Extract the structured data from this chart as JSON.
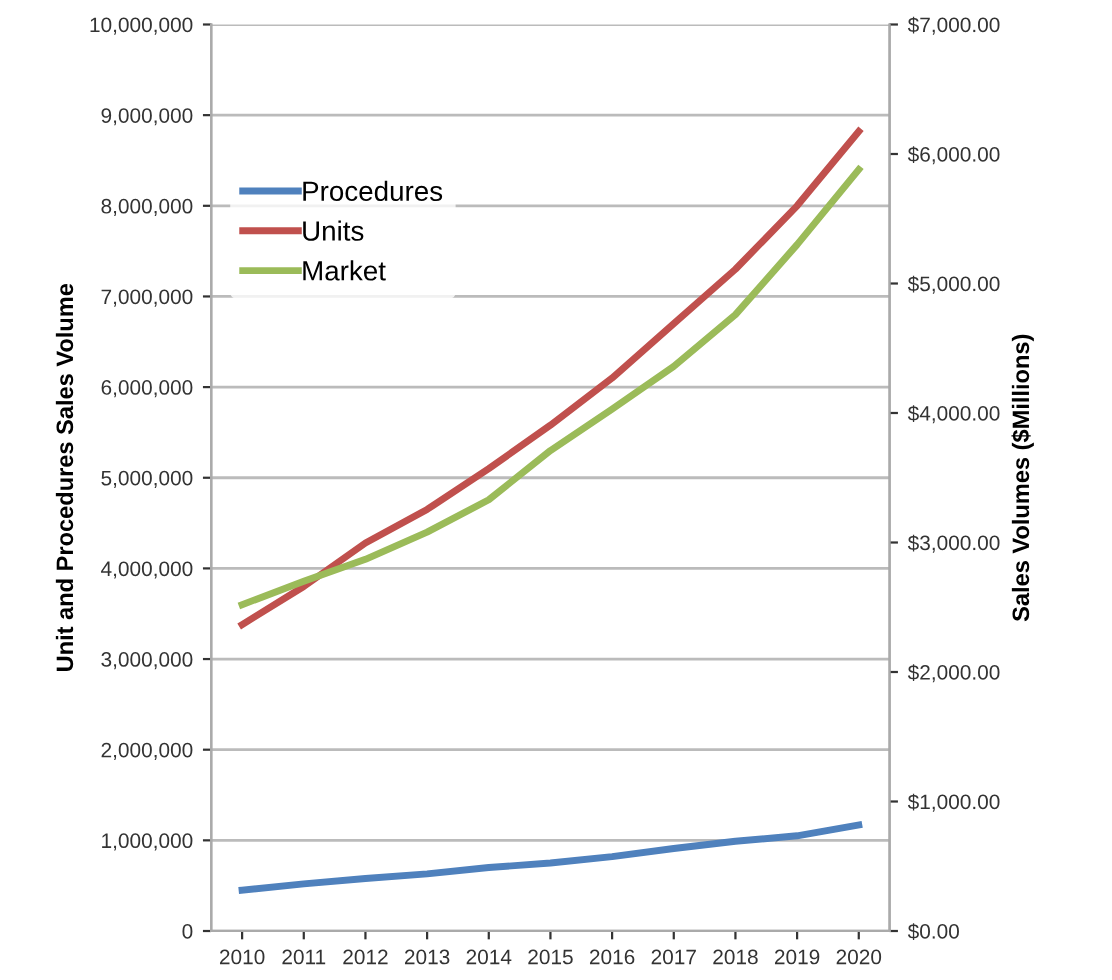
{
  "chart_data": {
    "type": "line",
    "ylabel": "Unit and Procedures Sales Volume",
    "y2label": "Sales Volumes ($Millions)",
    "categories": [
      "2010",
      "2011",
      "2012",
      "2013",
      "2014",
      "2015",
      "2016",
      "2017",
      "2018",
      "2019",
      "2020"
    ],
    "series": [
      {
        "name": "Procedures",
        "color": "#4f81bd",
        "values": [
          450000,
          520000,
          580000,
          630000,
          700000,
          750000,
          820000,
          910000,
          990000,
          1050000,
          1170000
        ]
      },
      {
        "name": "Units",
        "color": "#c0504d",
        "values": [
          3380000,
          3800000,
          4280000,
          4650000,
          5100000,
          5580000,
          6100000,
          6700000,
          7300000,
          8000000,
          8820000
        ]
      },
      {
        "name": "Market",
        "color": "#9bbb59",
        "axis": "y2",
        "values": [
          2520,
          2700,
          2870,
          3080,
          3330,
          3710,
          4030,
          4360,
          4760,
          5300,
          5880
        ]
      }
    ],
    "ylim": [
      0,
      10000000
    ],
    "yticks": [
      {
        "value": 0,
        "label": "0"
      },
      {
        "value": 1000000,
        "label": "1,000,000"
      },
      {
        "value": 2000000,
        "label": "2,000,000"
      },
      {
        "value": 3000000,
        "label": "3,000,000"
      },
      {
        "value": 4000000,
        "label": "4,000,000"
      },
      {
        "value": 5000000,
        "label": "5,000,000"
      },
      {
        "value": 6000000,
        "label": "6,000,000"
      },
      {
        "value": 7000000,
        "label": "7,000,000"
      },
      {
        "value": 8000000,
        "label": "8,000,000"
      },
      {
        "value": 9000000,
        "label": "9,000,000"
      },
      {
        "value": 10000000,
        "label": "10,000,000"
      }
    ],
    "y2lim": [
      0,
      7000
    ],
    "y2ticks": [
      {
        "value": 0,
        "label": "$0.00"
      },
      {
        "value": 1000,
        "label": "$1,000.00"
      },
      {
        "value": 2000,
        "label": "$2,000.00"
      },
      {
        "value": 3000,
        "label": "$3,000.00"
      },
      {
        "value": 4000,
        "label": "$4,000.00"
      },
      {
        "value": 5000,
        "label": "$5,000.00"
      },
      {
        "value": 6000,
        "label": "$6,000.00"
      },
      {
        "value": 7000,
        "label": "$7,000.00"
      }
    ],
    "grid": "y",
    "legend": "top left",
    "marker": "none",
    "line_style": "solid"
  }
}
